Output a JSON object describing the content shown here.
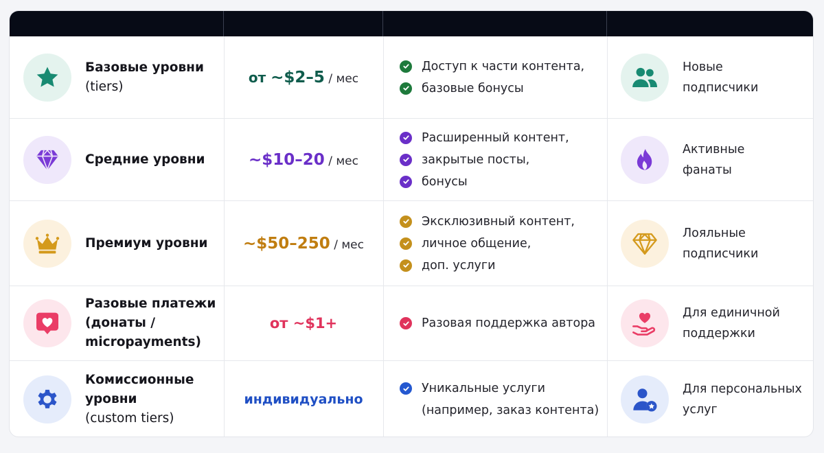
{
  "rows": [
    {
      "name": "Базовые уровни",
      "name_sub": "(tiers)",
      "price_prefix": "от ",
      "price": "~$2–5",
      "price_unit": " / мес",
      "price_color": "#0f5c4c",
      "accent": "#188a72",
      "circle_bg": "#e4f3ee",
      "tier_icon": "star-icon",
      "features": [
        "Доступ к части контента,",
        "базовые бонусы"
      ],
      "check_color": "#1e7a3c",
      "audience": [
        "Новые",
        "подписчики"
      ],
      "audience_icon": "users-icon"
    },
    {
      "name": "Средние уровни",
      "name_sub": "",
      "price_prefix": "",
      "price": "~$10–20",
      "price_unit": " / мес",
      "price_color": "#6a2fc8",
      "accent": "#7a3ad6",
      "circle_bg": "#efe8fb",
      "tier_icon": "diamond-icon",
      "features": [
        "Расширенный контент,",
        "закрытые посты,",
        "бонусы"
      ],
      "check_color": "#6a2fc8",
      "audience": [
        "Активные",
        "фанаты"
      ],
      "audience_icon": "flame-icon"
    },
    {
      "name": "Премиум уровни",
      "name_sub": "",
      "price_prefix": "",
      "price": "~$50–250",
      "price_unit": " / мес",
      "price_color": "#c07d10",
      "accent": "#d49a1c",
      "circle_bg": "#fcf1de",
      "tier_icon": "crown-icon",
      "features": [
        "Эксклюзивный контент,",
        "личное общение,",
        "доп. услуги"
      ],
      "check_color": "#c4901c",
      "audience": [
        "Лояльные",
        "подписчики"
      ],
      "audience_icon": "gem-outline-icon"
    },
    {
      "name": "Разовые платежи",
      "name_sub": "",
      "name_lines": [
        "Разовые платежи",
        "(донаты /",
        "micropayments)"
      ],
      "price_prefix": "",
      "price": "от ~$1+",
      "price_unit": "",
      "price_color": "#e0335c",
      "accent": "#ea3d66",
      "circle_bg": "#fde6ec",
      "tier_icon": "heart-chat-icon",
      "features": [
        "Разовая поддержка автора"
      ],
      "check_color": "#e0335c",
      "audience": [
        "Для единичной",
        "поддержки"
      ],
      "audience_icon": "heart-hand-icon"
    },
    {
      "name": "Комиссионные уровни",
      "name_sub": "(custom tiers)",
      "price_prefix": "",
      "price": "индивидуально",
      "price_unit": "",
      "price_color": "#1f4fc4",
      "accent": "#2b55c9",
      "circle_bg": "#e5ecfb",
      "tier_icon": "gear-icon",
      "features": [
        "Уникальные услуги",
        "(например, заказ контента)"
      ],
      "check_color": "#2458d0",
      "audience": [
        "Для персональных",
        "услуг"
      ],
      "audience_icon": "user-star-icon"
    }
  ]
}
